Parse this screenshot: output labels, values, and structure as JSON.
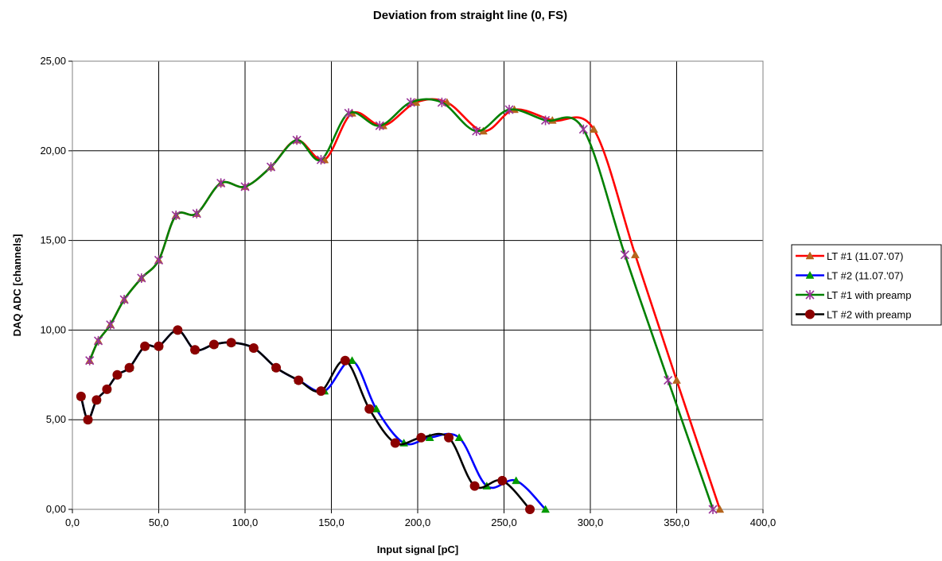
{
  "chart_data": {
    "type": "line",
    "title": "Deviation from straight line (0, FS)",
    "xlabel": "Input signal [pC]",
    "ylabel": "DAQ ADC [channels]",
    "xlim": [
      0,
      400
    ],
    "ylim": [
      0,
      25
    ],
    "x_ticks": [
      "0,0",
      "50,0",
      "100,0",
      "150,0",
      "200,0",
      "250,0",
      "300,0",
      "350,0",
      "400,0"
    ],
    "y_ticks": [
      "0,00",
      "5,00",
      "10,00",
      "15,00",
      "20,00",
      "25,00"
    ],
    "grid": true,
    "legend_position": "right",
    "series": [
      {
        "name": "LT #1 (11.07.'07)",
        "color": "#ff0000",
        "marker": "triangle",
        "marker_color": "#b5651d",
        "points": [
          [
            10,
            8.3
          ],
          [
            15,
            9.4
          ],
          [
            22,
            10.3
          ],
          [
            30,
            11.7
          ],
          [
            40,
            12.9
          ],
          [
            50,
            13.9
          ],
          [
            60,
            16.4
          ],
          [
            72,
            16.5
          ],
          [
            86,
            18.2
          ],
          [
            100,
            18.0
          ],
          [
            115,
            19.1
          ],
          [
            130,
            20.6
          ],
          [
            146,
            19.5
          ],
          [
            162,
            22.1
          ],
          [
            180,
            21.4
          ],
          [
            199,
            22.7
          ],
          [
            217,
            22.7
          ],
          [
            238,
            21.1
          ],
          [
            256,
            22.3
          ],
          [
            278,
            21.7
          ],
          [
            302,
            21.2
          ],
          [
            326,
            14.2
          ],
          [
            350,
            7.2
          ],
          [
            375,
            0.0
          ]
        ]
      },
      {
        "name": "LT #2 (11.07.'07)",
        "color": "#0000ff",
        "marker": "triangle",
        "marker_color": "#009900",
        "points": [
          [
            5,
            6.3
          ],
          [
            9,
            5.0
          ],
          [
            14,
            6.1
          ],
          [
            20,
            6.7
          ],
          [
            26,
            7.5
          ],
          [
            33,
            7.9
          ],
          [
            42,
            9.1
          ],
          [
            50,
            9.1
          ],
          [
            61,
            10.0
          ],
          [
            71,
            8.9
          ],
          [
            82,
            9.2
          ],
          [
            92,
            9.3
          ],
          [
            105,
            9.0
          ],
          [
            118,
            7.9
          ],
          [
            131,
            7.2
          ],
          [
            146,
            6.6
          ],
          [
            162,
            8.3
          ],
          [
            176,
            5.6
          ],
          [
            192,
            3.7
          ],
          [
            207,
            4.0
          ],
          [
            224,
            4.0
          ],
          [
            240,
            1.3
          ],
          [
            257,
            1.6
          ],
          [
            274,
            0.0
          ]
        ]
      },
      {
        "name": "LT #1 with preamp",
        "color": "#008000",
        "marker": "star",
        "marker_color": "#993399",
        "points": [
          [
            10,
            8.3
          ],
          [
            15,
            9.4
          ],
          [
            22,
            10.3
          ],
          [
            30,
            11.7
          ],
          [
            40,
            12.9
          ],
          [
            50,
            13.9
          ],
          [
            60,
            16.4
          ],
          [
            72,
            16.5
          ],
          [
            86,
            18.2
          ],
          [
            100,
            18.0
          ],
          [
            115,
            19.1
          ],
          [
            130,
            20.6
          ],
          [
            144,
            19.5
          ],
          [
            160,
            22.1
          ],
          [
            178,
            21.4
          ],
          [
            196,
            22.7
          ],
          [
            214,
            22.7
          ],
          [
            234,
            21.1
          ],
          [
            253,
            22.3
          ],
          [
            274,
            21.7
          ],
          [
            296,
            21.2
          ],
          [
            320,
            14.2
          ],
          [
            345,
            7.2
          ],
          [
            371,
            0.0
          ]
        ]
      },
      {
        "name": "LT #2 with preamp",
        "color": "#000000",
        "marker": "circle",
        "marker_color": "#8b0000",
        "points": [
          [
            5,
            6.3
          ],
          [
            9,
            5.0
          ],
          [
            14,
            6.1
          ],
          [
            20,
            6.7
          ],
          [
            26,
            7.5
          ],
          [
            33,
            7.9
          ],
          [
            42,
            9.1
          ],
          [
            50,
            9.1
          ],
          [
            61,
            10.0
          ],
          [
            71,
            8.9
          ],
          [
            82,
            9.2
          ],
          [
            92,
            9.3
          ],
          [
            105,
            9.0
          ],
          [
            118,
            7.9
          ],
          [
            131,
            7.2
          ],
          [
            144,
            6.6
          ],
          [
            158,
            8.3
          ],
          [
            172,
            5.6
          ],
          [
            187,
            3.7
          ],
          [
            202,
            4.0
          ],
          [
            218,
            4.0
          ],
          [
            233,
            1.3
          ],
          [
            249,
            1.6
          ],
          [
            265,
            0.0
          ]
        ]
      }
    ]
  }
}
